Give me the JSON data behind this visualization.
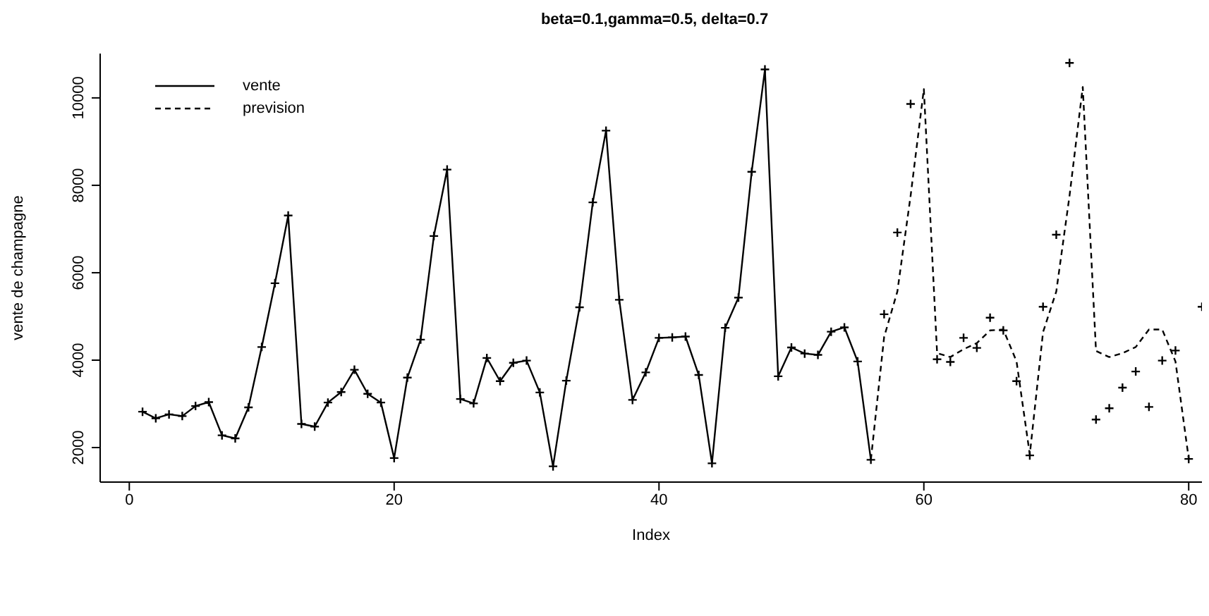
{
  "chart_data": {
    "type": "line",
    "title": "beta=0.1,gamma=0.5, delta=0.7",
    "xlabel": "Index",
    "ylabel": "vente de champagne",
    "xlim": [
      -2.2,
      81
    ],
    "xticks": [
      0,
      20,
      40,
      60,
      80
    ],
    "ylim": [
      1210,
      11014
    ],
    "yticks": [
      2000,
      4000,
      6000,
      8000,
      10000
    ],
    "grid": false,
    "legend": "top left",
    "series": [
      {
        "name": "vente",
        "color": "#000000",
        "marker": "cross",
        "line_style": "solid",
        "x": [
          1,
          2,
          3,
          4,
          5,
          6,
          7,
          8,
          9,
          10,
          11,
          12,
          13,
          14,
          15,
          16,
          17,
          18,
          19,
          20,
          21,
          22,
          23,
          24,
          25,
          26,
          27,
          28,
          29,
          30,
          31,
          32,
          33,
          34,
          35,
          36,
          37,
          38,
          39,
          40,
          41,
          42,
          43,
          44,
          45,
          46,
          47,
          48,
          49,
          50,
          51,
          52,
          53,
          54,
          55,
          56
        ],
        "values": [
          2820,
          2670,
          2760,
          2720,
          2950,
          3040,
          2280,
          2210,
          2920,
          4300,
          5760,
          7310,
          2540,
          2480,
          3030,
          3270,
          3780,
          3230,
          3030,
          1760,
          3600,
          4470,
          6840,
          8360,
          3110,
          3010,
          4050,
          3520,
          3940,
          3990,
          3260,
          1570,
          3530,
          5210,
          7610,
          9250,
          5380,
          3090,
          3720,
          4510,
          4520,
          4540,
          3660,
          1640,
          4740,
          5430,
          8310,
          10650,
          3630,
          4290,
          4150,
          4120,
          4650,
          4750,
          3970,
          1720
        ]
      },
      {
        "name": "prevision",
        "color": "#000000",
        "marker": "none",
        "line_style": "dashed",
        "x": [
          56,
          57,
          58,
          59,
          60,
          61,
          62,
          63,
          64,
          65,
          66,
          67,
          68,
          69,
          70,
          71,
          72,
          73,
          74,
          75,
          76,
          77,
          78,
          79,
          80
        ],
        "values": [
          1720,
          4530,
          5570,
          7760,
          10200,
          4160,
          4070,
          4250,
          4390,
          4680,
          4700,
          3970,
          1840,
          4640,
          5570,
          7760,
          10250,
          4210,
          4070,
          4160,
          4300,
          4700,
          4700,
          3970,
          1750
        ]
      },
      {
        "type": "scatter",
        "color": "#000000",
        "marker": "cross",
        "x": [
          57,
          58,
          59,
          60,
          61,
          62,
          63,
          64,
          65,
          66,
          67,
          68,
          69,
          70,
          71,
          72,
          73,
          74,
          75,
          76,
          77,
          78,
          79,
          80,
          81
        ],
        "values": [
          5050,
          6920,
          9860,
          null,
          4020,
          3960,
          4510,
          4280,
          4970,
          4680,
          3520,
          1820,
          5220,
          6870,
          10800,
          null,
          2640,
          2900,
          3370,
          3740,
          2930,
          3990,
          4220,
          1740,
          5220
        ]
      }
    ]
  }
}
